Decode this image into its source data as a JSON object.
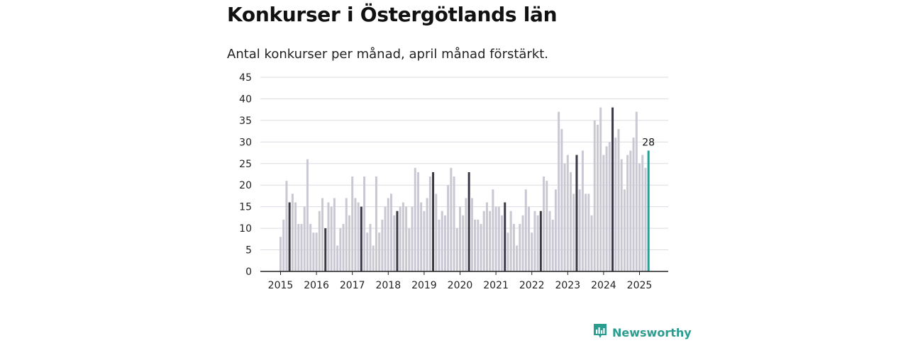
{
  "header": {
    "title": "Konkurser i Östergötlands län",
    "subtitle": "Antal konkurser per månad, april månad förstärkt."
  },
  "brand": {
    "name": "Newsworthy",
    "icon": "bar-chart-logo-icon"
  },
  "colors": {
    "bar": "#c9c8d3",
    "highlight": "#3a3946",
    "latest": "#1aa59a",
    "grid": "#dcdce2",
    "axis": "#222222"
  },
  "chart_data": {
    "type": "bar",
    "start": "2015-01",
    "ylim": [
      0,
      45
    ],
    "yticks": [
      0,
      5,
      10,
      15,
      20,
      25,
      30,
      35,
      40,
      45
    ],
    "xticks": [
      "2015",
      "2016",
      "2017",
      "2018",
      "2019",
      "2020",
      "2021",
      "2022",
      "2023",
      "2024",
      "2025"
    ],
    "grid": true,
    "highlight_month": "april",
    "latest_label": "28",
    "values": [
      8,
      12,
      21,
      16,
      18,
      16,
      11,
      11,
      15,
      26,
      11,
      9,
      9,
      14,
      17,
      10,
      16,
      15,
      17,
      6,
      10,
      11,
      17,
      13,
      22,
      17,
      16,
      15,
      22,
      9,
      11,
      6,
      22,
      9,
      12,
      15,
      17,
      18,
      13,
      14,
      15,
      16,
      15,
      10,
      15,
      24,
      23,
      16,
      14,
      17,
      22,
      23,
      18,
      12,
      14,
      13,
      20,
      24,
      22,
      10,
      15,
      13,
      17,
      23,
      17,
      12,
      12,
      11,
      14,
      16,
      14,
      19,
      15,
      15,
      13,
      16,
      9,
      14,
      11,
      6,
      11,
      13,
      19,
      15,
      9,
      14,
      13,
      14,
      22,
      21,
      14,
      12,
      19,
      37,
      33,
      25,
      27,
      23,
      18,
      27,
      19,
      28,
      18,
      18,
      13,
      35,
      34,
      38,
      27,
      29,
      30,
      38,
      31,
      33,
      26,
      19,
      27,
      28,
      31,
      37,
      25,
      27,
      24,
      28
    ]
  }
}
